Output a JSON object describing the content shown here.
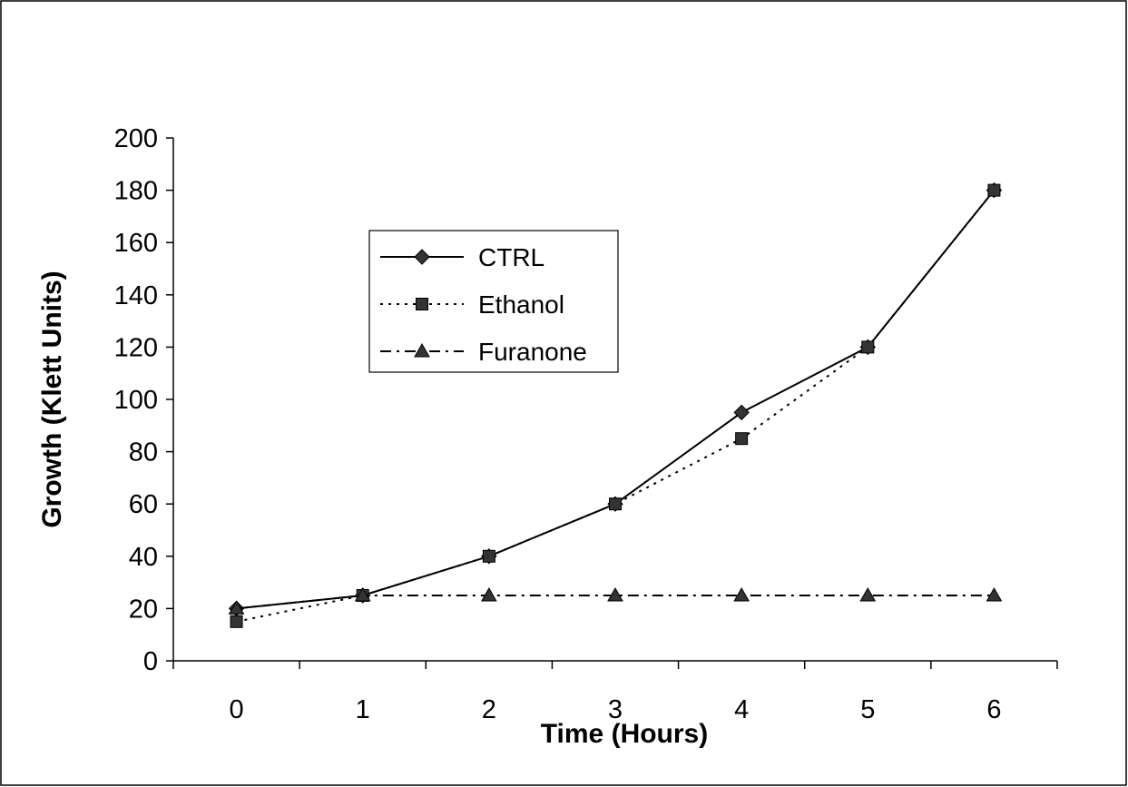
{
  "chart_data": {
    "type": "line",
    "title": "",
    "xlabel": "Time (Hours)",
    "ylabel": "Growth (Klett Units)",
    "categories": [
      "0",
      "1",
      "2",
      "3",
      "4",
      "5",
      "6"
    ],
    "x": [
      0,
      1,
      2,
      3,
      4,
      5,
      6
    ],
    "ylim": [
      0,
      200
    ],
    "yticks": [
      0,
      20,
      40,
      60,
      80,
      100,
      120,
      140,
      160,
      180,
      200
    ],
    "grid": false,
    "legend_position": "upper-left inside plot",
    "series": [
      {
        "name": "CTRL",
        "values": [
          20,
          25,
          40,
          60,
          95,
          120,
          180
        ],
        "line_style": "solid",
        "marker": "diamond",
        "color": "#000000"
      },
      {
        "name": "Ethanol",
        "values": [
          15,
          25,
          40,
          60,
          85,
          120,
          180
        ],
        "line_style": "dotted",
        "marker": "square",
        "color": "#000000"
      },
      {
        "name": "Furanone",
        "values": [
          20,
          25,
          25,
          25,
          25,
          25,
          25
        ],
        "line_style": "dash-dot",
        "marker": "triangle",
        "color": "#000000"
      }
    ]
  }
}
